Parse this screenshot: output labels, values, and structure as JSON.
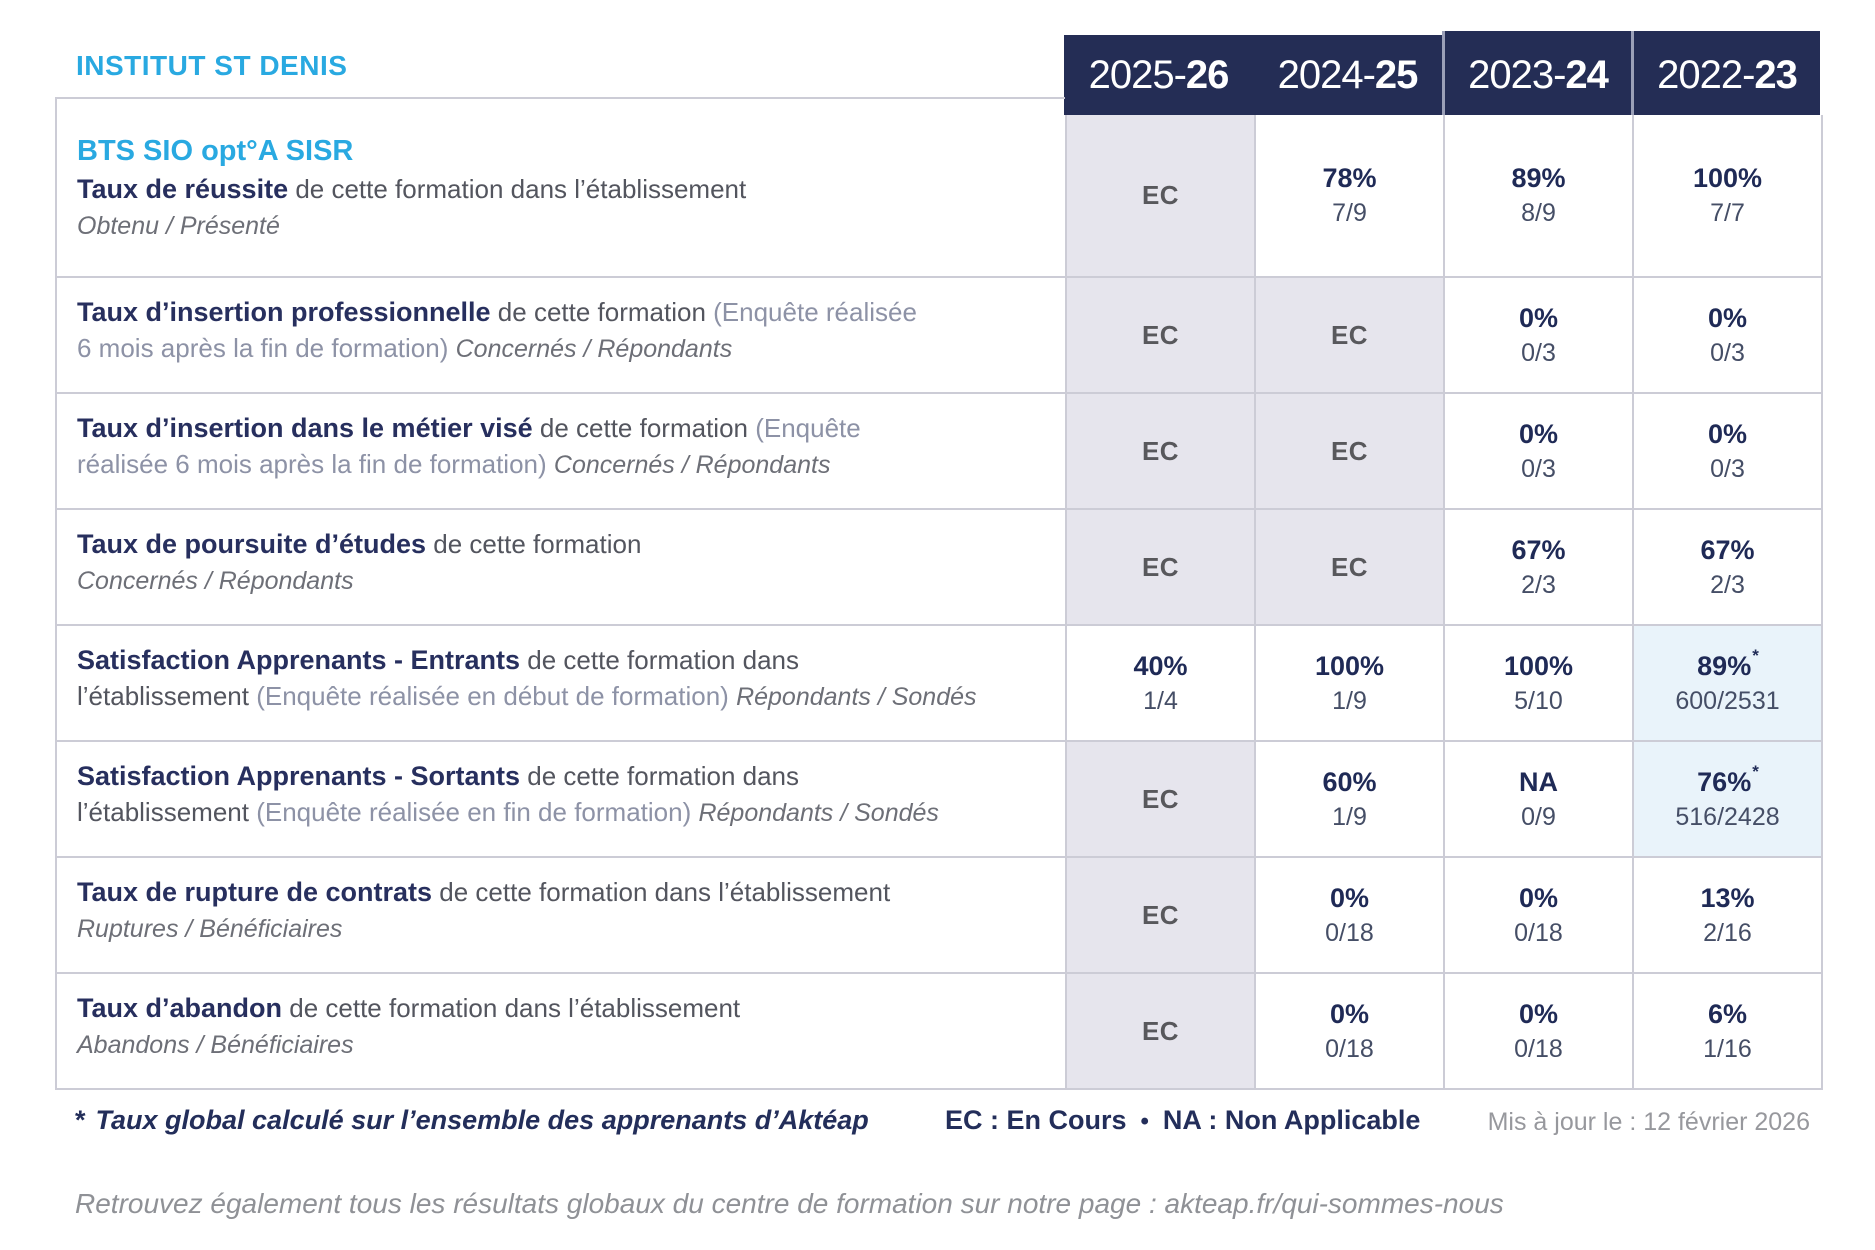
{
  "header": {
    "institution": "INSTITUT ST DENIS",
    "years": [
      {
        "prefix": "2025-",
        "suffix": "26"
      },
      {
        "prefix": "2024-",
        "suffix": "25"
      },
      {
        "prefix": "2023-",
        "suffix": "24"
      },
      {
        "prefix": "2022-",
        "suffix": "23"
      }
    ]
  },
  "table": {
    "rows": [
      {
        "lines": [
          [
            [
              "program",
              "BTS SIO opt°A SISR"
            ]
          ],
          [
            [
              "title",
              "Taux de réussite"
            ],
            [
              "desc",
              " de cette formation dans l’établissement"
            ]
          ],
          [
            [
              "sub",
              "Obtenu / Présenté"
            ]
          ]
        ],
        "cells": [
          {
            "ec": "EC"
          },
          {
            "pct": "78%",
            "frac": "7/9"
          },
          {
            "pct": "89%",
            "frac": "8/9"
          },
          {
            "pct": "100%",
            "frac": "7/7"
          }
        ]
      },
      {
        "lines": [
          [
            [
              "title",
              "Taux d’insertion professionnelle"
            ],
            [
              "desc",
              " de cette formation "
            ],
            [
              "paren",
              "(Enquête réalisée"
            ]
          ],
          [
            [
              "paren",
              "6 mois après la fin de formation) "
            ],
            [
              "sub",
              "Concernés / Répondants"
            ]
          ]
        ],
        "cells": [
          {
            "ec": "EC"
          },
          {
            "ec": "EC"
          },
          {
            "pct": "0%",
            "frac": "0/3"
          },
          {
            "pct": "0%",
            "frac": "0/3"
          }
        ]
      },
      {
        "lines": [
          [
            [
              "title",
              "Taux d’insertion dans le métier visé"
            ],
            [
              "desc",
              " de cette formation "
            ],
            [
              "paren",
              "(Enquête"
            ]
          ],
          [
            [
              "paren",
              "réalisée 6 mois après la fin de formation) "
            ],
            [
              "sub",
              "Concernés / Répondants"
            ]
          ]
        ],
        "cells": [
          {
            "ec": "EC"
          },
          {
            "ec": "EC"
          },
          {
            "pct": "0%",
            "frac": "0/3"
          },
          {
            "pct": "0%",
            "frac": "0/3"
          }
        ]
      },
      {
        "lines": [
          [
            [
              "title",
              "Taux de poursuite d’études"
            ],
            [
              "desc",
              " de cette formation"
            ]
          ],
          [
            [
              "sub",
              "Concernés / Répondants"
            ]
          ]
        ],
        "cells": [
          {
            "ec": "EC"
          },
          {
            "ec": "EC"
          },
          {
            "pct": "67%",
            "frac": "2/3"
          },
          {
            "pct": "67%",
            "frac": "2/3"
          }
        ]
      },
      {
        "lines": [
          [
            [
              "title",
              "Satisfaction Apprenants - Entrants"
            ],
            [
              "desc",
              " de cette formation dans"
            ]
          ],
          [
            [
              "desc",
              "l’établissement "
            ],
            [
              "paren",
              "(Enquête réalisée en début de formation) "
            ],
            [
              "sub",
              "Répondants / Sondés"
            ]
          ]
        ],
        "cells": [
          {
            "pct": "40%",
            "frac": "1/4"
          },
          {
            "pct": "100%",
            "frac": "1/9"
          },
          {
            "pct": "100%",
            "frac": "5/10"
          },
          {
            "pct": "89%",
            "frac": "600/2531",
            "star": "*",
            "highlight": true
          }
        ]
      },
      {
        "lines": [
          [
            [
              "title",
              "Satisfaction Apprenants - Sortants"
            ],
            [
              "desc",
              " de cette formation dans"
            ]
          ],
          [
            [
              "desc",
              "l’établissement "
            ],
            [
              "paren",
              "(Enquête réalisée en fin de formation) "
            ],
            [
              "sub",
              "Répondants / Sondés"
            ]
          ]
        ],
        "cells": [
          {
            "ec": "EC"
          },
          {
            "pct": "60%",
            "frac": "1/9"
          },
          {
            "pct": "NA",
            "frac": "0/9"
          },
          {
            "pct": "76%",
            "frac": "516/2428",
            "star": "*",
            "highlight": true
          }
        ]
      },
      {
        "lines": [
          [
            [
              "title",
              "Taux de rupture de contrats"
            ],
            [
              "desc",
              " de cette formation dans l’établissement"
            ]
          ],
          [
            [
              "sub",
              "Ruptures / Bénéficiaires"
            ]
          ]
        ],
        "cells": [
          {
            "ec": "EC"
          },
          {
            "pct": "0%",
            "frac": "0/18"
          },
          {
            "pct": "0%",
            "frac": "0/18"
          },
          {
            "pct": "13%",
            "frac": "2/16"
          }
        ]
      },
      {
        "lines": [
          [
            [
              "title",
              "Taux d’abandon"
            ],
            [
              "desc",
              " de cette formation dans l’établissement"
            ]
          ],
          [
            [
              "sub",
              "Abandons / Bénéficiaires"
            ]
          ]
        ],
        "cells": [
          {
            "ec": "EC"
          },
          {
            "pct": "0%",
            "frac": "0/18"
          },
          {
            "pct": "0%",
            "frac": "0/18"
          },
          {
            "pct": "6%",
            "frac": "1/16"
          }
        ]
      }
    ]
  },
  "footer": {
    "star_symbol": "*",
    "star_note": "Taux global calculé sur l’ensemble des apprenants d’Aktéap",
    "legend_ec": "EC : En Cours",
    "bullet": "•",
    "legend_na": "NA : Non Applicable",
    "updated": "Mis à jour le : 12 février 2026",
    "colophon": "Retrouvez également tous les résultats globaux du centre de formation sur notre page : akteap.fr/qui-sommes-nous"
  },
  "colors": {
    "accent_cyan": "#29a9e1",
    "band_navy": "#242d55",
    "value_navy": "#1f2a56",
    "ec_cell_bg": "#e6e5ed",
    "starred_cell_bg": "#e9f3fa",
    "border_gray": "#ccccd6"
  }
}
